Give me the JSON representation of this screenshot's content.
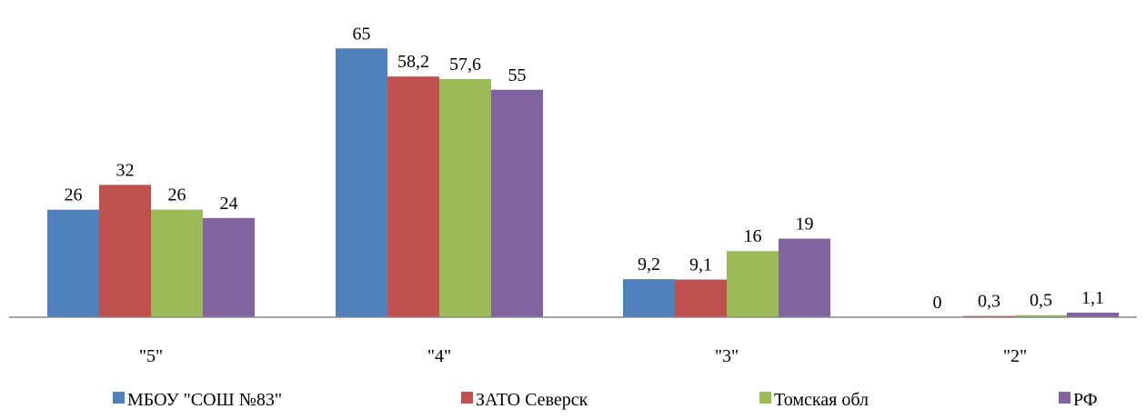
{
  "chart_data": {
    "type": "bar",
    "title": "",
    "xlabel": "",
    "ylabel": "",
    "grid": false,
    "legend_position": "bottom",
    "ylim": [
      0,
      70
    ],
    "categories": [
      "\"5\"",
      "\"4\"",
      "\"3\"",
      "\"2\""
    ],
    "series": [
      {
        "name": "МБОУ \"СОШ №83\"",
        "color": "#4f81bd",
        "values": [
          26,
          65,
          9.2,
          0
        ],
        "labels": [
          "26",
          "65",
          "9,2",
          "0"
        ]
      },
      {
        "name": "ЗАТО Северск",
        "color": "#c0504d",
        "values": [
          32,
          58.2,
          9.1,
          0.3
        ],
        "labels": [
          "32",
          "58,2",
          "9,1",
          "0,3"
        ]
      },
      {
        "name": "Томская обл",
        "color": "#9bbb59",
        "values": [
          26,
          57.6,
          16,
          0.5
        ],
        "labels": [
          "26",
          "57,6",
          "16",
          "0,5"
        ]
      },
      {
        "name": "РФ",
        "color": "#8064a2",
        "values": [
          24,
          55,
          19,
          1.1
        ],
        "labels": [
          "24",
          "55",
          "19",
          "1,1"
        ]
      }
    ]
  }
}
